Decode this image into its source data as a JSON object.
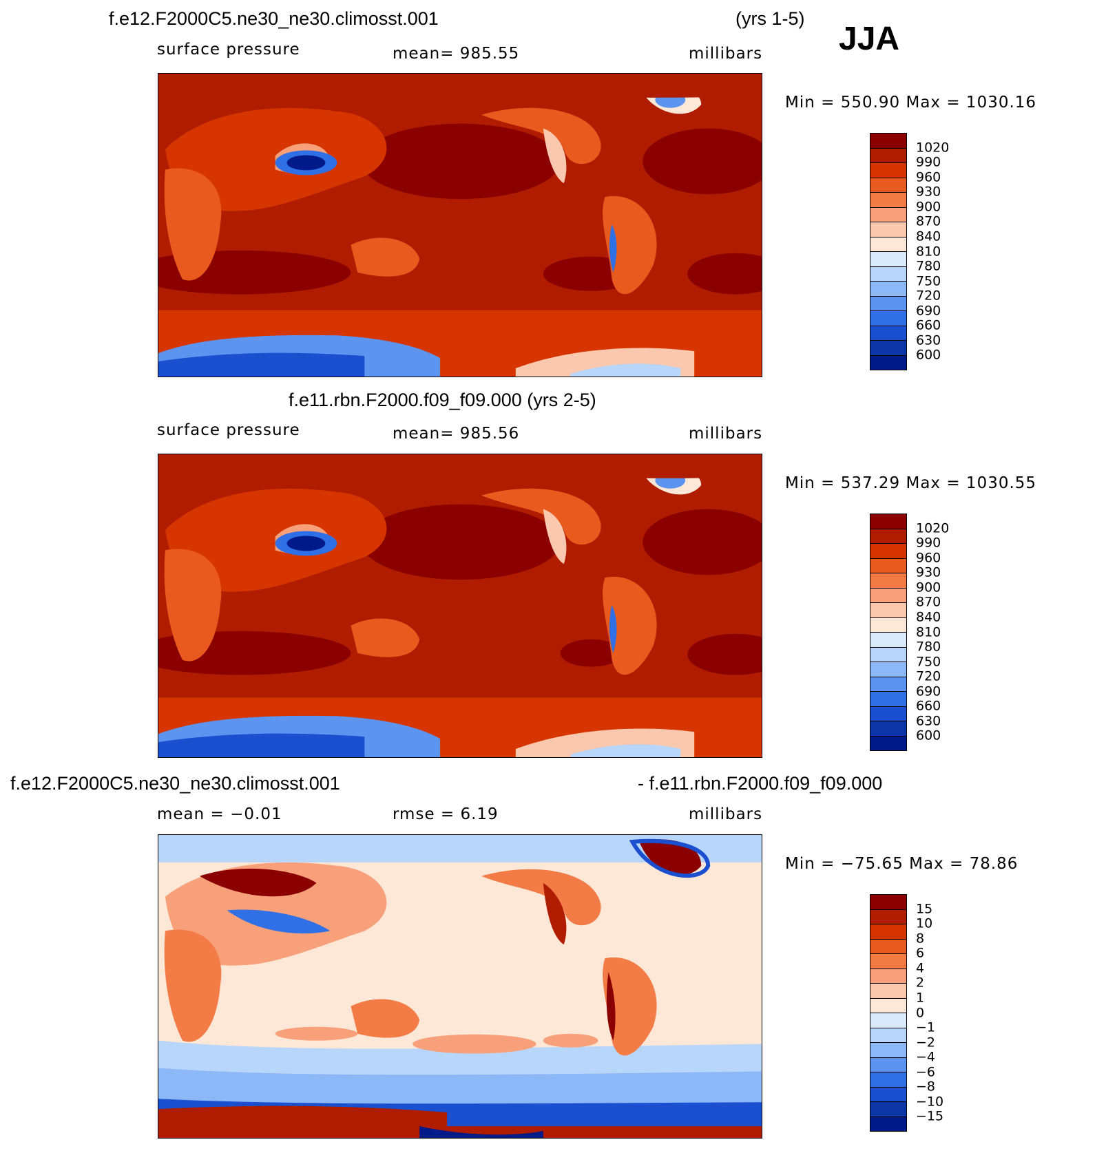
{
  "season": "JJA",
  "panels": [
    {
      "title": "f.e12.F2000C5.ne30_ne30.climosst.001",
      "title_years": "(yrs 1-5)",
      "left_label": "surface pressure",
      "center_label": "mean= 985.55",
      "right_label": "millibars",
      "minmax": "Min = 550.90 Max = 1030.16",
      "colorbar": {
        "labels": [
          "1020",
          "990",
          "960",
          "930",
          "900",
          "870",
          "840",
          "810",
          "780",
          "750",
          "720",
          "690",
          "660",
          "630",
          "600"
        ],
        "colors": [
          "#8b0000",
          "#b01c00",
          "#d63500",
          "#e85a1e",
          "#f27b46",
          "#f7a07a",
          "#fac8ae",
          "#fde8d8",
          "#dbeafb",
          "#b8d5fa",
          "#8cb8f7",
          "#5c94f0",
          "#3070e6",
          "#1a4fcf",
          "#0c35a8",
          "#001a8a"
        ]
      }
    },
    {
      "title": "f.e11.rbn.F2000.f09_f09.000 (yrs 2-5)",
      "left_label": "surface pressure",
      "center_label": "mean= 985.56",
      "right_label": "millibars",
      "minmax": "Min = 537.29 Max = 1030.55",
      "colorbar": {
        "labels": [
          "1020",
          "990",
          "960",
          "930",
          "900",
          "870",
          "840",
          "810",
          "780",
          "750",
          "720",
          "690",
          "660",
          "630",
          "600"
        ],
        "colors": [
          "#8b0000",
          "#b01c00",
          "#d63500",
          "#e85a1e",
          "#f27b46",
          "#f7a07a",
          "#fac8ae",
          "#fde8d8",
          "#dbeafb",
          "#b8d5fa",
          "#8cb8f7",
          "#5c94f0",
          "#3070e6",
          "#1a4fcf",
          "#0c35a8",
          "#001a8a"
        ]
      }
    },
    {
      "title_left": "f.e12.F2000C5.ne30_ne30.climosst.001",
      "title_right": "- f.e11.rbn.F2000.f09_f09.000",
      "left_label": "mean =   −0.01",
      "center_label": "rmse =     6.19",
      "right_label": "millibars",
      "minmax": "Min = −75.65 Max =   78.86",
      "colorbar": {
        "labels": [
          "15",
          "10",
          "8",
          "6",
          "4",
          "2",
          "1",
          "0",
          "−1",
          "−2",
          "−4",
          "−6",
          "−8",
          "−10",
          "−15"
        ],
        "colors": [
          "#8b0000",
          "#b01c00",
          "#d63500",
          "#e85a1e",
          "#f27b46",
          "#f7a07a",
          "#fac8ae",
          "#fde8d8",
          "#dbeafb",
          "#b8d5fa",
          "#8cb8f7",
          "#5c94f0",
          "#3070e6",
          "#1a4fcf",
          "#0c35a8",
          "#001a8a"
        ]
      }
    }
  ]
}
